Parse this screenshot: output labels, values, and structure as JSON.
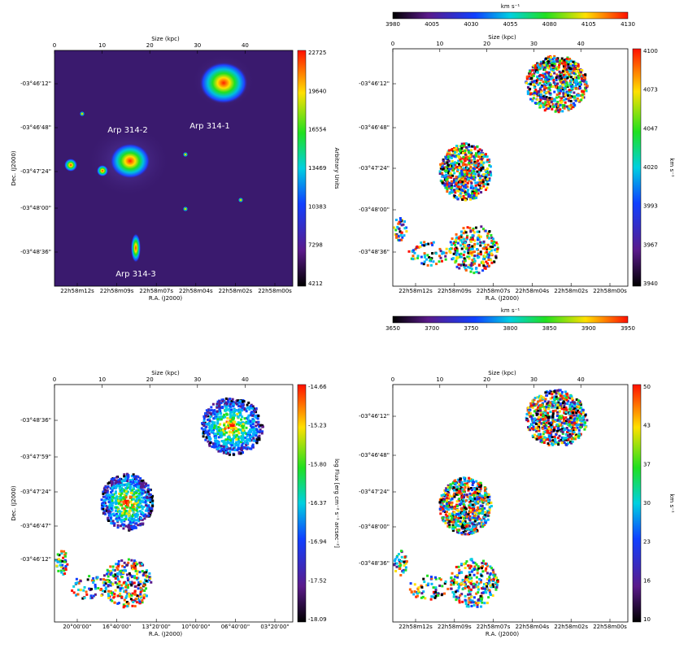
{
  "panels": [
    {
      "size_label": "Size (kpc)",
      "size_ticks": [
        "0",
        "10",
        "20",
        "30",
        "40"
      ],
      "ra_label": "R.A. (J2000)",
      "ra_ticks": [
        "22h58m12s",
        "22h58m09s",
        "22h58m07s",
        "22h58m04s",
        "22h58m02s",
        "22h58m00s"
      ],
      "dec_label": "Dec. (J2000)",
      "dec_ticks": [
        "-03°46'12\"",
        "-03°46'48\"",
        "-03°47'24\"",
        "-03°48'00\"",
        "-03°48'36\""
      ],
      "colorbar_label": "Arbitrary Units",
      "colorbar_ticks": [
        "22725",
        "19640",
        "16554",
        "13469",
        "10383",
        "7298",
        "4212"
      ],
      "annotations": [
        "Arp 314-1",
        "Arp 314-2",
        "Arp 314-3"
      ]
    },
    {
      "size_label": "Size (kpc)",
      "size_ticks": [
        "0",
        "10",
        "20",
        "30",
        "40"
      ],
      "ra_label": "R.A. (J2000)",
      "ra_ticks": [
        "22h58m12s",
        "22h58m09s",
        "22h58m07s",
        "22h58m04s",
        "22h58m02s",
        "22h58m00s"
      ],
      "dec_ticks": [
        "-03°46'12\"",
        "-03°46'48\"",
        "-03°47'24\"",
        "-03°48'00\"",
        "-03°48'36\""
      ],
      "colorbar_label": "km s⁻¹",
      "colorbar_ticks": [
        "4100",
        "4073",
        "4047",
        "4020",
        "3993",
        "3967",
        "3940"
      ]
    },
    {
      "size_label": "Size (kpc)",
      "size_ticks": [
        "0",
        "10",
        "20",
        "30",
        "40"
      ],
      "ra_label": "R.A. (J2000)",
      "ra_ticks": [
        "20°00'00\"",
        "16°40'00\"",
        "13°20'00\"",
        "10°00'00\"",
        "06°40'00\"",
        "03°20'00\""
      ],
      "dec_label": "Dec. (J2000)",
      "dec_ticks": [
        "-03°48'36\"",
        "-03°47'59\"",
        "-03°47'24\"",
        "-03°46'47\"",
        "-03°46'12\""
      ],
      "colorbar_label": "log Flux [erg cm⁻² s⁻¹ arcsec⁻²]",
      "colorbar_ticks": [
        "-14.66",
        "-15.23",
        "-15.80",
        "-16.37",
        "-16.94",
        "-17.52",
        "-18.09"
      ]
    },
    {
      "size_label": "Size (kpc)",
      "size_ticks": [
        "0",
        "10",
        "20",
        "30",
        "40"
      ],
      "ra_label": "R.A. (J2000)",
      "ra_ticks": [
        "22h58m12s",
        "22h58m09s",
        "22h58m07s",
        "22h58m04s",
        "22h58m02s",
        "22h58m00s"
      ],
      "dec_ticks": [
        "-03°46'12\"",
        "-03°46'48\"",
        "-03°47'24\"",
        "-03°48'00\"",
        "-03°48'36\""
      ],
      "colorbar_label": "km s⁻¹",
      "colorbar_ticks": [
        "50",
        "43",
        "37",
        "30",
        "23",
        "16",
        "10"
      ]
    }
  ],
  "top_colorbar": {
    "label": "km s⁻¹",
    "ticks": [
      "3980",
      "4005",
      "4030",
      "4055",
      "4080",
      "4105",
      "4130"
    ]
  },
  "middle_colorbar": {
    "label": "km s⁻¹",
    "ticks": [
      "3650",
      "3700",
      "3750",
      "3800",
      "3850",
      "3900",
      "3950"
    ]
  }
}
